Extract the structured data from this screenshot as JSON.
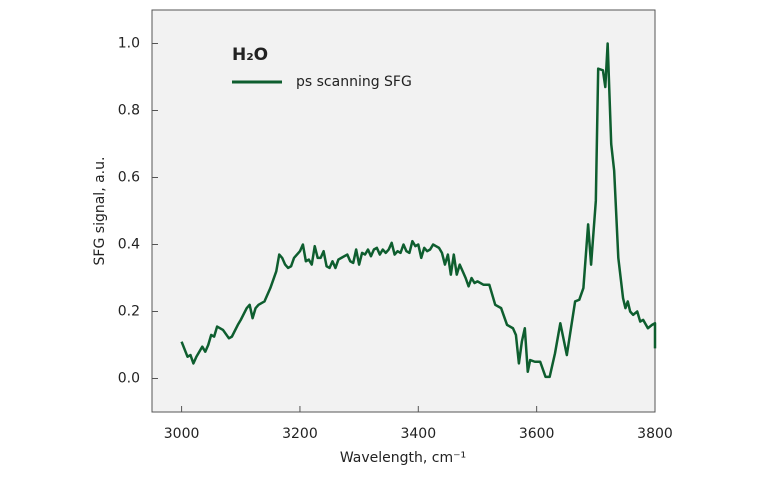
{
  "chart_data": {
    "type": "line",
    "legend_title": "H₂O",
    "xlabel": "Wavelength, cm⁻¹",
    "ylabel": "SFG signal, a.u.",
    "xlim": [
      2950,
      3800
    ],
    "xticks": [
      3000,
      3200,
      3400,
      3600,
      3800
    ],
    "ylim": [
      -0.1,
      1.1
    ],
    "yticks": [
      {
        "value": 0,
        "label": "0.0"
      },
      {
        "value": 0.2,
        "label": "0.2"
      },
      {
        "value": 0.4,
        "label": "0.4"
      },
      {
        "value": 0.6,
        "label": "0.6"
      },
      {
        "value": 0.8,
        "label": "0.8"
      },
      {
        "value": 1,
        "label": "1.0"
      }
    ],
    "legend": "upper left",
    "x": [
      3000,
      3010,
      3015,
      3020,
      3025,
      3035,
      3040,
      3045,
      3050,
      3055,
      3060,
      3070,
      3080,
      3085,
      3095,
      3100,
      3110,
      3115,
      3120,
      3125,
      3130,
      3140,
      3150,
      3160,
      3165,
      3170,
      3175,
      3180,
      3185,
      3190,
      3195,
      3200,
      3205,
      3210,
      3215,
      3220,
      3225,
      3230,
      3235,
      3240,
      3245,
      3250,
      3255,
      3260,
      3265,
      3270,
      3280,
      3285,
      3290,
      3295,
      3300,
      3305,
      3310,
      3315,
      3320,
      3325,
      3330,
      3335,
      3340,
      3345,
      3350,
      3355,
      3360,
      3365,
      3370,
      3375,
      3380,
      3385,
      3390,
      3395,
      3400,
      3405,
      3410,
      3415,
      3420,
      3425,
      3430,
      3435,
      3440,
      3445,
      3450,
      3455,
      3460,
      3465,
      3470,
      3475,
      3480,
      3485,
      3490,
      3495,
      3500,
      3510,
      3520,
      3530,
      3540,
      3550,
      3560,
      3565,
      3570,
      3575,
      3580,
      3585,
      3589,
      3597,
      3606,
      3615,
      3622,
      3631,
      3640,
      3651,
      3665,
      3672,
      3679,
      3687,
      3692,
      3700,
      3704,
      3712,
      3716,
      3720,
      3726,
      3731,
      3738,
      3746,
      3750,
      3754,
      3758,
      3763,
      3770,
      3775,
      3780,
      3788,
      3795,
      3800,
      3800
    ],
    "series": [
      {
        "name": "ps scanning SFG",
        "color": "#0e5e2f",
        "values": [
          0.11,
          0.065,
          0.07,
          0.045,
          0.065,
          0.095,
          0.08,
          0.1,
          0.13,
          0.125,
          0.155,
          0.145,
          0.12,
          0.125,
          0.16,
          0.175,
          0.21,
          0.22,
          0.18,
          0.21,
          0.22,
          0.23,
          0.27,
          0.32,
          0.37,
          0.36,
          0.34,
          0.33,
          0.335,
          0.36,
          0.37,
          0.38,
          0.4,
          0.35,
          0.355,
          0.34,
          0.395,
          0.36,
          0.36,
          0.38,
          0.335,
          0.33,
          0.35,
          0.33,
          0.355,
          0.36,
          0.37,
          0.35,
          0.345,
          0.385,
          0.34,
          0.375,
          0.37,
          0.385,
          0.365,
          0.385,
          0.39,
          0.37,
          0.385,
          0.375,
          0.385,
          0.405,
          0.37,
          0.38,
          0.375,
          0.4,
          0.38,
          0.375,
          0.41,
          0.395,
          0.4,
          0.36,
          0.39,
          0.38,
          0.385,
          0.4,
          0.395,
          0.39,
          0.375,
          0.34,
          0.37,
          0.31,
          0.37,
          0.31,
          0.34,
          0.32,
          0.3,
          0.275,
          0.3,
          0.285,
          0.29,
          0.28,
          0.28,
          0.22,
          0.21,
          0.16,
          0.15,
          0.13,
          0.045,
          0.11,
          0.15,
          0.02,
          0.055,
          0.05,
          0.05,
          0.005,
          0.005,
          0.075,
          0.165,
          0.07,
          0.23,
          0.235,
          0.27,
          0.46,
          0.34,
          0.53,
          0.925,
          0.92,
          0.87,
          1.0,
          0.7,
          0.62,
          0.36,
          0.24,
          0.21,
          0.23,
          0.2,
          0.19,
          0.2,
          0.17,
          0.175,
          0.15,
          0.16,
          0.165,
          0.09
        ]
      }
    ]
  }
}
